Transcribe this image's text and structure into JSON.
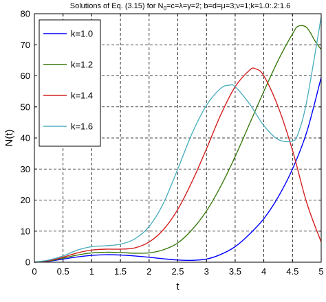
{
  "chart_data": {
    "type": "line",
    "title": "Solutions of Eq. (3.15) for  N",
    "title_sub": "0",
    "title_rest": "=c=λ=γ=2; b=d=μ=3;ν=1;k=1.0:.2:1.6",
    "xlabel": "t",
    "ylabel": "N(t)",
    "xlim": [
      0,
      5
    ],
    "ylim": [
      0,
      80
    ],
    "xticks": [
      0,
      0.5,
      1,
      1.5,
      2,
      2.5,
      3,
      3.5,
      4,
      4.5,
      5
    ],
    "xtick_labels": [
      "0",
      "0.5",
      "1",
      "1.5",
      "2",
      "2.5",
      "3",
      "3.5",
      "4",
      "4.5",
      "5"
    ],
    "yticks": [
      0,
      10,
      20,
      30,
      40,
      50,
      60,
      70,
      80
    ],
    "ytick_labels": [
      "0",
      "10",
      "20",
      "30",
      "40",
      "50",
      "60",
      "70",
      "80"
    ],
    "grid": true,
    "legend_position": "top-left",
    "series": [
      {
        "name": "k=1.0",
        "color": "#0000ff",
        "x": [
          0,
          0.25,
          0.5,
          0.75,
          1.0,
          1.25,
          1.5,
          1.75,
          2.0,
          2.25,
          2.5,
          2.75,
          3.0,
          3.25,
          3.5,
          3.75,
          4.0,
          4.25,
          4.5,
          4.75,
          5.0
        ],
        "y": [
          0,
          0.3,
          1.0,
          1.7,
          2.2,
          2.4,
          2.3,
          2.0,
          1.6,
          1.1,
          0.7,
          0.6,
          1.0,
          2.5,
          5.0,
          9.0,
          14.0,
          21.0,
          30.0,
          42.0,
          59.5
        ]
      },
      {
        "name": "k=1.2",
        "color": "#3a7a10",
        "x": [
          0,
          0.25,
          0.5,
          0.75,
          1.0,
          1.25,
          1.5,
          1.75,
          2.0,
          2.25,
          2.5,
          2.75,
          3.0,
          3.25,
          3.5,
          3.75,
          4.0,
          4.25,
          4.5,
          4.6,
          4.75,
          4.9,
          5.0
        ],
        "y": [
          0,
          0.4,
          1.3,
          2.3,
          3.0,
          3.2,
          3.1,
          2.9,
          3.0,
          4.0,
          6.2,
          10.5,
          16.5,
          24.5,
          34.0,
          44.5,
          55.0,
          65.0,
          73.5,
          76.0,
          75.5,
          71.0,
          68.5
        ]
      },
      {
        "name": "k=1.4",
        "color": "#d42020",
        "x": [
          0,
          0.25,
          0.5,
          0.75,
          1.0,
          1.25,
          1.5,
          1.75,
          2.0,
          2.25,
          2.5,
          2.75,
          3.0,
          3.25,
          3.5,
          3.75,
          3.85,
          4.0,
          4.25,
          4.5,
          4.75,
          5.0
        ],
        "y": [
          0,
          0.5,
          1.6,
          3.0,
          3.9,
          4.2,
          4.2,
          4.6,
          6.5,
          10.5,
          17.0,
          26.0,
          36.5,
          47.5,
          56.5,
          61.8,
          62.3,
          60.0,
          50.0,
          36.0,
          19.0,
          6.5
        ]
      },
      {
        "name": "k=1.6",
        "color": "#4fb0c0",
        "x": [
          0,
          0.25,
          0.5,
          0.75,
          1.0,
          1.25,
          1.5,
          1.75,
          2.0,
          2.25,
          2.5,
          2.75,
          3.0,
          3.25,
          3.4,
          3.5,
          3.75,
          4.0,
          4.25,
          4.5,
          4.6,
          4.75,
          5.0
        ],
        "y": [
          0,
          0.7,
          2.0,
          3.9,
          5.0,
          5.3,
          5.8,
          7.5,
          11.5,
          19.0,
          30.0,
          41.5,
          50.5,
          56.0,
          57.0,
          56.5,
          51.0,
          44.0,
          39.5,
          39.0,
          41.5,
          52.0,
          79.0
        ]
      }
    ]
  }
}
